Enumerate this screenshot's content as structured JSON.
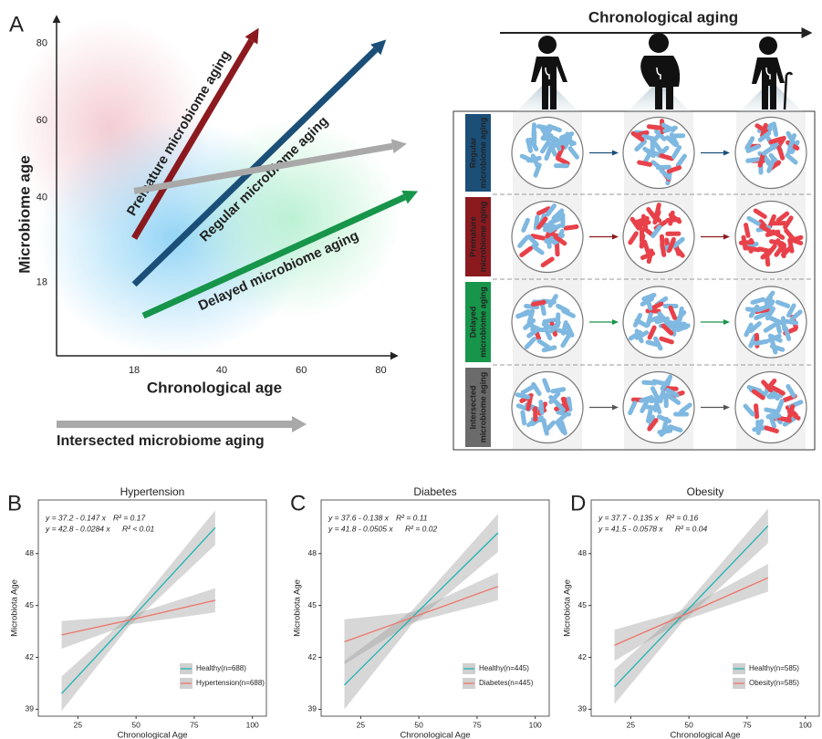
{
  "panels": [
    "A",
    "B",
    "C",
    "D"
  ],
  "chart_data": [
    {
      "type": "arrow",
      "x_label": "Chronological age",
      "y_label": "Microbiome age",
      "xlim": [
        -1.5,
        84
      ],
      "ylim": [
        -1,
        87
      ],
      "xticks": [
        18,
        40,
        60,
        80
      ],
      "yticks": [
        18,
        40,
        60,
        80
      ],
      "series": [
        {
          "name": "Premature microbiome aging",
          "color": "#8b1a1f",
          "x": [
            18,
            49.3
          ],
          "values": [
            29.5,
            84
          ]
        },
        {
          "name": "Regular microbiome aging",
          "color": "#1b4f78",
          "x": [
            18,
            81.3
          ],
          "values": [
            17.5,
            81
          ]
        },
        {
          "name": "Intersected microbiome aging",
          "color": "#a9a9a9",
          "x": [
            18,
            86.5
          ],
          "values": [
            41.7,
            54
          ]
        },
        {
          "name": "Delayed microbiome aging",
          "color": "#17954a",
          "x": [
            20.3,
            89.3
          ],
          "values": [
            9.4,
            41.7
          ]
        }
      ]
    },
    {
      "type": "line",
      "title": "Hypertension",
      "x_label": "Chronological Age",
      "y_label": "Microbiota Age",
      "xlim": [
        8,
        106
      ],
      "ylim": [
        38.6,
        51.1
      ],
      "xticks": [
        25,
        50,
        75,
        100
      ],
      "yticks": [
        39,
        42,
        45,
        48
      ],
      "series": [
        {
          "name": "Healthy(n=688)",
          "color": "#1fb3b3",
          "equation": "y = 37.2 - 0.147 x",
          "r2": "R² = 0.17",
          "x": [
            18,
            47,
            84
          ],
          "values": [
            39.9,
            44.1,
            49.5
          ],
          "lower": [
            38.9,
            43.8,
            48.5
          ],
          "upper": [
            40.9,
            44.4,
            50.5
          ]
        },
        {
          "name": "Hypertension(n=688)",
          "color": "#ef7469",
          "equation": "y = 42.8 - 0.0284 x",
          "r2": "R² < 0.01",
          "x": [
            18,
            47,
            84
          ],
          "values": [
            43.3,
            44.15,
            45.3
          ],
          "lower": [
            42.5,
            43.9,
            44.6
          ],
          "upper": [
            44.1,
            44.4,
            46.0
          ]
        }
      ]
    },
    {
      "type": "line",
      "title": "Diabetes",
      "x_label": "Chronological Age",
      "y_label": "Microbiota Age",
      "xlim": [
        8,
        106
      ],
      "ylim": [
        38.6,
        51.1
      ],
      "xticks": [
        25,
        50,
        75,
        100
      ],
      "yticks": [
        39,
        42,
        45,
        48
      ],
      "series": [
        {
          "name": "Healthy(n=445)",
          "color": "#1fb3b3",
          "equation": "y = 37.6 - 0.138 x",
          "r2": "R² = 0.11",
          "x": [
            18,
            47,
            84
          ],
          "values": [
            40.4,
            44.3,
            49.2
          ],
          "lower": [
            39.0,
            43.9,
            48.1
          ],
          "upper": [
            41.8,
            44.7,
            50.3
          ]
        },
        {
          "name": "Diabetes(n=445)",
          "color": "#ef7469",
          "equation": "y = 41.8 - 0.0505 x",
          "r2": "R² = 0.02",
          "x": [
            18,
            47,
            84
          ],
          "values": [
            42.9,
            44.3,
            46.1
          ],
          "lower": [
            41.6,
            44.0,
            45.3
          ],
          "upper": [
            44.2,
            44.6,
            46.9
          ]
        }
      ]
    },
    {
      "type": "line",
      "title": "Obesity",
      "x_label": "Chronological Age",
      "y_label": "Microbiota Age",
      "xlim": [
        8,
        106
      ],
      "ylim": [
        38.6,
        51.1
      ],
      "xticks": [
        25,
        50,
        75,
        100
      ],
      "yticks": [
        39,
        42,
        45,
        48
      ],
      "series": [
        {
          "name": "Healthy(n=585)",
          "color": "#1fb3b3",
          "equation": "y = 37.7 - 0.135 x",
          "r2": "R² = 0.16",
          "x": [
            18,
            47,
            84
          ],
          "values": [
            40.3,
            44.4,
            49.6
          ],
          "lower": [
            39.3,
            44.0,
            48.6
          ],
          "upper": [
            41.3,
            44.8,
            50.6
          ]
        },
        {
          "name": "Obesity(n=585)",
          "color": "#ef7469",
          "equation": "y = 41.5 - 0.0578 x",
          "r2": "R² = 0.04",
          "x": [
            18,
            47,
            84
          ],
          "values": [
            42.7,
            44.4,
            46.6
          ],
          "lower": [
            41.8,
            44.1,
            45.8
          ],
          "upper": [
            43.6,
            44.7,
            47.4
          ]
        }
      ]
    }
  ],
  "diagram": {
    "title": "Chronological aging",
    "rows": [
      {
        "label": [
          "Regular",
          "microbiome aging"
        ],
        "color": "#1b4f78"
      },
      {
        "label": [
          "Premature",
          "microbiome aging"
        ],
        "color": "#8b1a1f"
      },
      {
        "label": [
          "Delayed",
          "microbiome aging"
        ],
        "color": "#17954a"
      },
      {
        "label": [
          "Intersected",
          "microbiome aging"
        ],
        "color": "#6b6b6b"
      }
    ]
  }
}
